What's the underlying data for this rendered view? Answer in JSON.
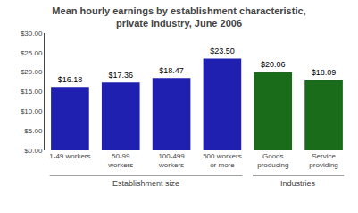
{
  "chart_data": {
    "type": "bar",
    "title": "Mean hourly earnings by establishment characteristic,\nprivate industry, June 2006",
    "categories": [
      "1-49 workers",
      "50-99\nworkers",
      "100-499\nworkers",
      "500 workers\nor more",
      "Goods\nproducing",
      "Service\nproviding"
    ],
    "values": [
      16.18,
      17.36,
      18.47,
      23.5,
      20.06,
      18.09
    ],
    "value_labels": [
      "$16.18",
      "$17.36",
      "$18.47",
      "$23.50",
      "$20.06",
      "$18.09"
    ],
    "data_labels": true,
    "colors": [
      "#2020b0",
      "#2020b0",
      "#2020b0",
      "#2020b0",
      "#1a6b1a",
      "#1a6b1a"
    ],
    "ylim": [
      0,
      30
    ],
    "yticks": [
      {
        "value": 0,
        "label": "$0.00"
      },
      {
        "value": 5,
        "label": "$5.00"
      },
      {
        "value": 10,
        "label": "$10.00"
      },
      {
        "value": 15,
        "label": "$15.00"
      },
      {
        "value": 20,
        "label": "$20.00"
      },
      {
        "value": 25,
        "label": "$25.00"
      },
      {
        "value": 30,
        "label": "$30.00"
      }
    ],
    "grid": false,
    "annotations": [
      {
        "text": "Establishment size",
        "categories": [
          "1-49 workers",
          "50-99\nworkers",
          "100-499\nworkers",
          "500 workers\nor more"
        ]
      },
      {
        "text": "Industries",
        "categories": [
          "Goods\nproducing",
          "Service\nproviding"
        ]
      }
    ]
  }
}
